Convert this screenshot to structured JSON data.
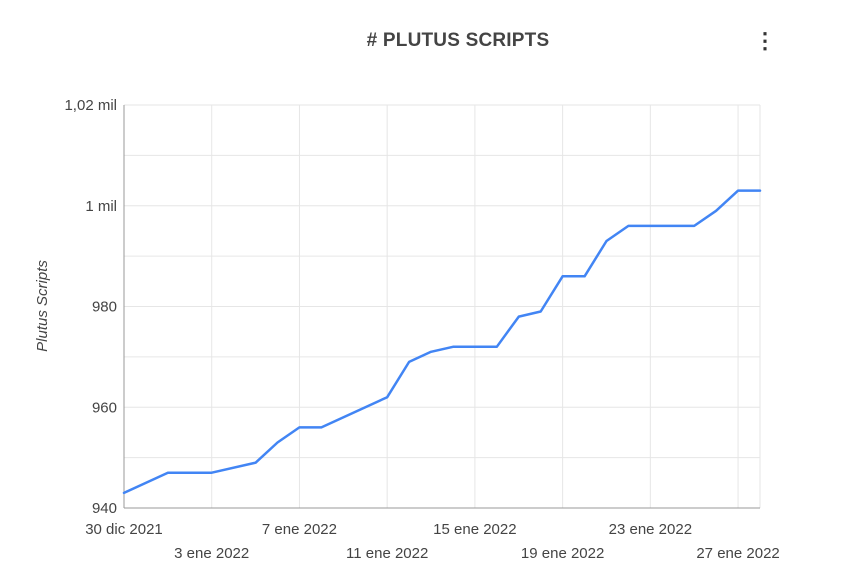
{
  "header": {
    "title": "# PLUTUS SCRIPTS",
    "menu_icon": "more-vertical-icon"
  },
  "chart_data": {
    "type": "line",
    "title": "# PLUTUS SCRIPTS",
    "xlabel": "",
    "ylabel": "Plutus Scripts",
    "ylim": [
      940,
      1020
    ],
    "y_ticks": [
      {
        "value": 940,
        "label": "940"
      },
      {
        "value": 960,
        "label": "960"
      },
      {
        "value": 980,
        "label": "980"
      },
      {
        "value": 1000,
        "label": "1 mil"
      },
      {
        "value": 1020,
        "label": "1,02 mil"
      }
    ],
    "x_start": "2021-12-30",
    "x_end": "2022-01-28",
    "x_ticks": [
      {
        "date": "2021-12-30",
        "label": "30 dic 2021",
        "row": 1
      },
      {
        "date": "2022-01-03",
        "label": "3 ene 2022",
        "row": 2
      },
      {
        "date": "2022-01-07",
        "label": "7 ene 2022",
        "row": 1
      },
      {
        "date": "2022-01-11",
        "label": "11 ene 2022",
        "row": 2
      },
      {
        "date": "2022-01-15",
        "label": "15 ene 2022",
        "row": 1
      },
      {
        "date": "2022-01-19",
        "label": "19 ene 2022",
        "row": 2
      },
      {
        "date": "2022-01-23",
        "label": "23 ene 2022",
        "row": 1
      },
      {
        "date": "2022-01-27",
        "label": "27 ene 2022",
        "row": 2
      }
    ],
    "grid": true,
    "series_color": "#4285f4",
    "series": [
      {
        "name": "",
        "points": [
          {
            "x": "2021-12-30",
            "y": 943
          },
          {
            "x": "2022-01-01",
            "y": 947
          },
          {
            "x": "2022-01-03",
            "y": 947
          },
          {
            "x": "2022-01-05",
            "y": 949
          },
          {
            "x": "2022-01-06",
            "y": 953
          },
          {
            "x": "2022-01-07",
            "y": 956
          },
          {
            "x": "2022-01-08",
            "y": 956
          },
          {
            "x": "2022-01-11",
            "y": 962
          },
          {
            "x": "2022-01-12",
            "y": 969
          },
          {
            "x": "2022-01-13",
            "y": 971
          },
          {
            "x": "2022-01-14",
            "y": 972
          },
          {
            "x": "2022-01-16",
            "y": 972
          },
          {
            "x": "2022-01-17",
            "y": 978
          },
          {
            "x": "2022-01-18",
            "y": 979
          },
          {
            "x": "2022-01-19",
            "y": 986
          },
          {
            "x": "2022-01-20",
            "y": 986
          },
          {
            "x": "2022-01-21",
            "y": 993
          },
          {
            "x": "2022-01-22",
            "y": 996
          },
          {
            "x": "2022-01-25",
            "y": 996
          },
          {
            "x": "2022-01-26",
            "y": 999
          },
          {
            "x": "2022-01-27",
            "y": 1003
          },
          {
            "x": "2022-01-28",
            "y": 1003
          }
        ]
      }
    ]
  }
}
